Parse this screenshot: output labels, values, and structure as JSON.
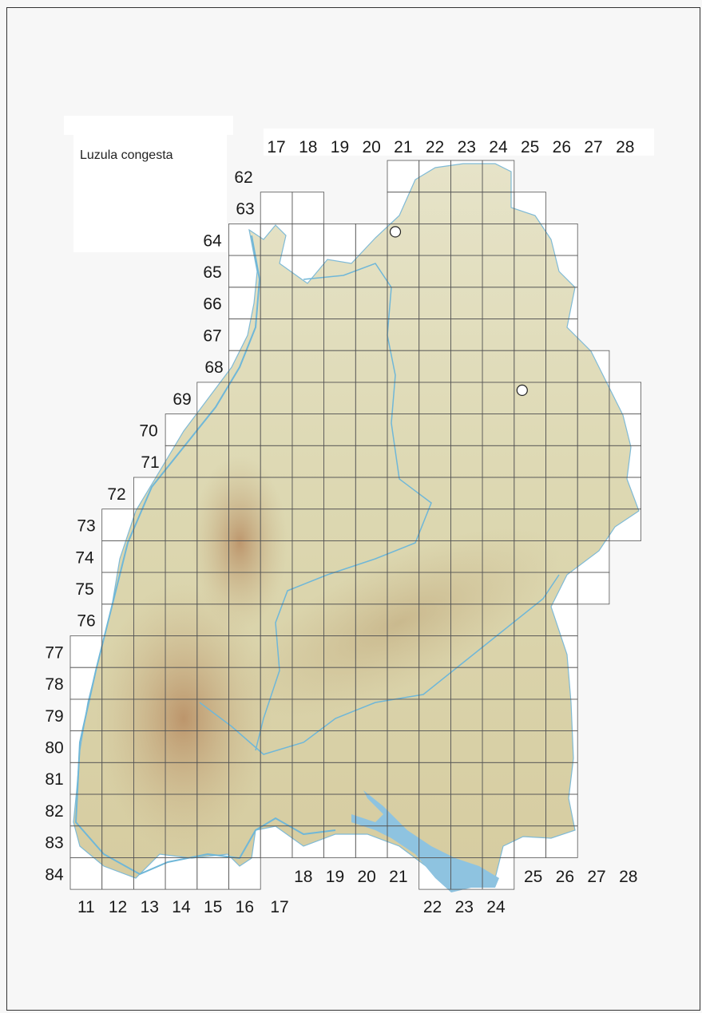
{
  "map": {
    "species": "Luzula congesta",
    "top_columns": [
      "17",
      "18",
      "19",
      "20",
      "21",
      "22",
      "23",
      "24",
      "25",
      "26",
      "27",
      "28"
    ],
    "rows": [
      "62",
      "63",
      "64",
      "65",
      "66",
      "67",
      "68",
      "69",
      "70",
      "71",
      "72",
      "73",
      "74",
      "75",
      "76",
      "77",
      "78",
      "79",
      "80",
      "81",
      "82",
      "83",
      "84"
    ],
    "bottom_columns_low": [
      "11",
      "12",
      "13",
      "14",
      "15",
      "16",
      "17"
    ],
    "bottom_columns_mid": [
      "18",
      "19",
      "20",
      "21"
    ],
    "bottom_columns_lake": [
      "22",
      "23",
      "24"
    ],
    "bottom_columns_right": [
      "25",
      "26",
      "27",
      "28"
    ],
    "records": [
      {
        "column": 21,
        "row": 64,
        "symbol": "open-circle"
      },
      {
        "column": 25,
        "row": 69,
        "symbol": "open-circle"
      }
    ],
    "colors": {
      "land": "#dfe3c0",
      "highland": "#c9a47c",
      "water": "#8ec3e0",
      "river": "#6fb7d8",
      "grid": "#444444"
    }
  }
}
